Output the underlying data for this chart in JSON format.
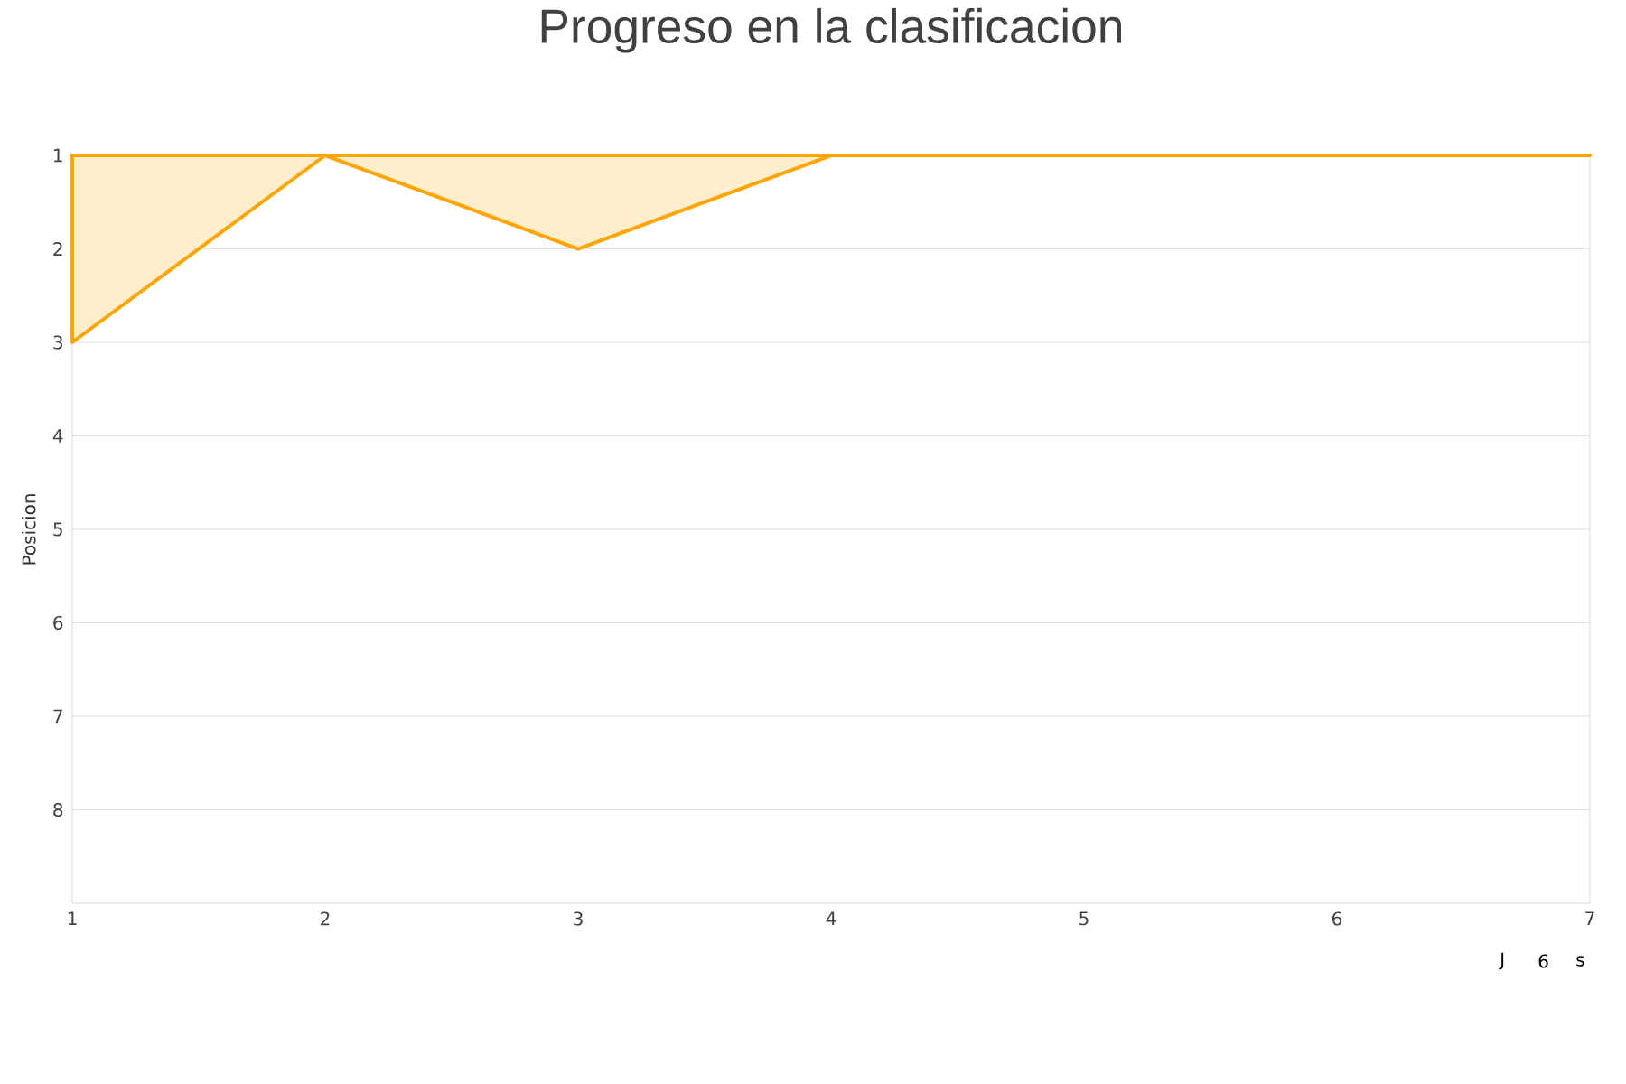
{
  "chart_data": {
    "type": "area",
    "title": "Progreso en la clasificacion",
    "ylabel": "Posicion",
    "x": [
      1,
      2,
      3,
      4,
      5,
      6,
      7
    ],
    "series": [
      {
        "color": "#ffa500",
        "values": [
          3,
          1,
          2,
          1,
          1,
          1,
          1
        ]
      }
    ],
    "xlim": [
      1,
      7
    ],
    "xticks": [
      1,
      2,
      3,
      4,
      5,
      6,
      7
    ],
    "ylim": [
      9,
      1
    ],
    "yticks": [
      1,
      2,
      3,
      4,
      5,
      6,
      7,
      8
    ],
    "grid": "y",
    "marker": "none",
    "annotations": [
      "J",
      "6",
      "s"
    ]
  }
}
